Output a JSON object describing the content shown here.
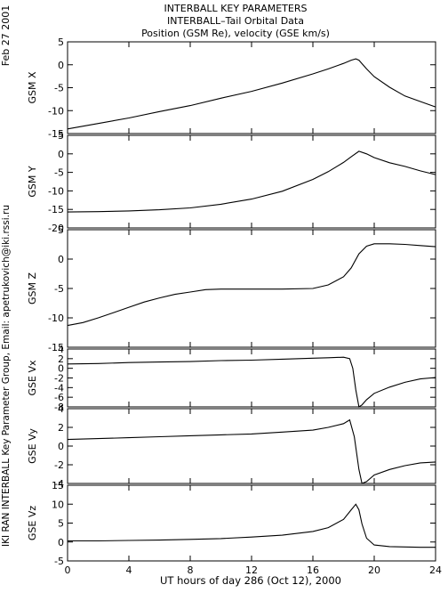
{
  "header": {
    "date": "Feb 27 2001",
    "title_lines": [
      "INTERBALL KEY PARAMETERS",
      "INTERBALL–Tail Orbital Data",
      "Position (GSM Re), velocity (GSE km/s)"
    ],
    "side_credit": "IKI RAN INTERBALL Key Parameter Group, Email: apetrukovich@iki.rssi.ru"
  },
  "chart_data": {
    "type": "line",
    "title": "INTERBALL KEY PARAMETERS",
    "xlabel": "UT hours of day 286 (Oct 12), 2000",
    "xlim": [
      0,
      24
    ],
    "xticks": [
      0,
      4,
      8,
      12,
      16,
      20,
      24
    ],
    "grid": false,
    "panels": [
      {
        "ylabel": "GSM X",
        "ylim": [
          -15,
          5
        ],
        "yticks": [
          5,
          0,
          -5,
          -10,
          -15
        ],
        "x": [
          0,
          2,
          4,
          6,
          8,
          10,
          12,
          14,
          16,
          17,
          18,
          18.5,
          18.8,
          19,
          19.5,
          20,
          21,
          22,
          23,
          24
        ],
        "y": [
          -14,
          -12.8,
          -11.6,
          -10.2,
          -8.9,
          -7.3,
          -5.8,
          -4.0,
          -2.0,
          -0.9,
          0.3,
          1.0,
          1.3,
          1.0,
          -0.9,
          -2.6,
          -4.9,
          -6.8,
          -8.0,
          -9.2
        ]
      },
      {
        "ylabel": "GSM Y",
        "ylim": [
          -20,
          5
        ],
        "yticks": [
          5,
          0,
          -5,
          -10,
          -15,
          -20
        ],
        "x": [
          0,
          2,
          4,
          6,
          8,
          10,
          12,
          14,
          16,
          17,
          18,
          18.5,
          19,
          19.5,
          20,
          21,
          22,
          23,
          24
        ],
        "y": [
          -15.7,
          -15.6,
          -15.4,
          -15.1,
          -14.6,
          -13.6,
          -12.2,
          -10.1,
          -6.9,
          -4.8,
          -2.3,
          -0.8,
          0.7,
          0.0,
          -1.0,
          -2.4,
          -3.4,
          -4.6,
          -5.6
        ]
      },
      {
        "ylabel": "GSM Z",
        "ylim": [
          -15,
          5
        ],
        "yticks": [
          5,
          0,
          -5,
          -10,
          -15
        ],
        "x": [
          0,
          1,
          2,
          3,
          4,
          5,
          6,
          7,
          8,
          9,
          10,
          12,
          14,
          16,
          17,
          18,
          18.5,
          19,
          19.5,
          20,
          21,
          22,
          23,
          24
        ],
        "y": [
          -11.3,
          -10.8,
          -10.0,
          -9.1,
          -8.2,
          -7.3,
          -6.6,
          -6.0,
          -5.6,
          -5.2,
          -5.1,
          -5.1,
          -5.1,
          -5.0,
          -4.4,
          -3.0,
          -1.5,
          0.9,
          2.2,
          2.6,
          2.6,
          2.5,
          2.3,
          2.1
        ]
      },
      {
        "ylabel": "GSE Vx",
        "ylim": [
          -8,
          4
        ],
        "yticks": [
          4,
          2,
          0,
          -2,
          -4,
          -6,
          -8
        ],
        "x": [
          0,
          2,
          4,
          6,
          8,
          10,
          12,
          14,
          16,
          17,
          18,
          18.4,
          18.6,
          18.8,
          19.0,
          19.2,
          19.5,
          20,
          21,
          22,
          23,
          24
        ],
        "y": [
          0.9,
          1.0,
          1.2,
          1.3,
          1.4,
          1.6,
          1.7,
          1.9,
          2.1,
          2.2,
          2.3,
          2.0,
          0.0,
          -4.5,
          -8.0,
          -7.6,
          -6.5,
          -5.2,
          -3.9,
          -2.9,
          -2.2,
          -1.9
        ]
      },
      {
        "ylabel": "GSE Vy",
        "ylim": [
          -4,
          4
        ],
        "yticks": [
          4,
          2,
          0,
          -2,
          -4
        ],
        "x": [
          0,
          2,
          4,
          6,
          8,
          10,
          12,
          14,
          16,
          17,
          18,
          18.4,
          18.7,
          19.0,
          19.2,
          19.5,
          20,
          21,
          22,
          23,
          24
        ],
        "y": [
          0.7,
          0.8,
          0.9,
          1.0,
          1.1,
          1.2,
          1.3,
          1.5,
          1.7,
          2.0,
          2.4,
          2.8,
          1.0,
          -2.5,
          -4.0,
          -3.8,
          -3.1,
          -2.5,
          -2.1,
          -1.8,
          -1.7
        ]
      },
      {
        "ylabel": "GSE Vz",
        "ylim": [
          -5,
          15
        ],
        "yticks": [
          15,
          10,
          5,
          0,
          -5
        ],
        "x": [
          0,
          2,
          4,
          6,
          8,
          10,
          12,
          14,
          16,
          17,
          18,
          18.5,
          18.8,
          19.0,
          19.2,
          19.5,
          20,
          21,
          22,
          23,
          24
        ],
        "y": [
          0.3,
          0.3,
          0.4,
          0.5,
          0.7,
          0.9,
          1.3,
          1.8,
          2.8,
          3.8,
          6.0,
          8.5,
          10.0,
          8.5,
          4.8,
          1.0,
          -0.8,
          -1.2,
          -1.3,
          -1.4,
          -1.4
        ]
      }
    ]
  }
}
